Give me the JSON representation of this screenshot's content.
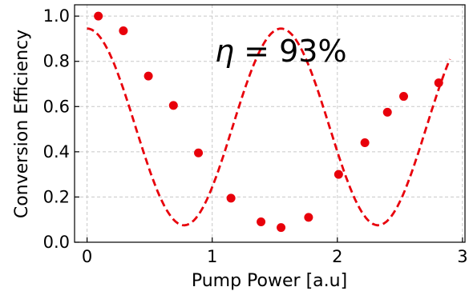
{
  "chart_data": {
    "type": "scatter",
    "xlabel": "Pump Power [a.u]",
    "ylabel": "Conversion Efficiency",
    "xlim": [
      -0.1,
      3.02
    ],
    "ylim": [
      0.0,
      1.05
    ],
    "x_ticks": [
      0,
      1,
      2,
      3
    ],
    "x_tick_labels": [
      "0",
      "1",
      "2",
      "3"
    ],
    "y_ticks": [
      0.0,
      0.2,
      0.4,
      0.6,
      0.8,
      1.0
    ],
    "y_tick_labels": [
      "0.0",
      "0.2",
      "0.4",
      "0.6",
      "0.8",
      "1.0"
    ],
    "grid": true,
    "annotation": {
      "symbol": "η",
      "text": " = 93%"
    },
    "series": [
      {
        "kind": "points",
        "color": "#e8000b",
        "x": [
          0.09,
          0.29,
          0.49,
          0.69,
          0.89,
          1.15,
          1.39,
          1.55,
          1.77,
          2.01,
          2.22,
          2.4,
          2.53,
          2.81
        ],
        "y": [
          1.0,
          0.935,
          0.735,
          0.605,
          0.395,
          0.195,
          0.09,
          0.065,
          0.11,
          0.3,
          0.44,
          0.575,
          0.645,
          0.705
        ]
      },
      {
        "kind": "fit",
        "color": "#e8000b",
        "dashed": true,
        "model": "offset + amplitude * cos(pi * x / x_min)^2",
        "offset": 0.075,
        "amplitude": 0.87,
        "x_min": 1.55,
        "x_range": [
          0.0,
          2.9
        ]
      }
    ]
  }
}
